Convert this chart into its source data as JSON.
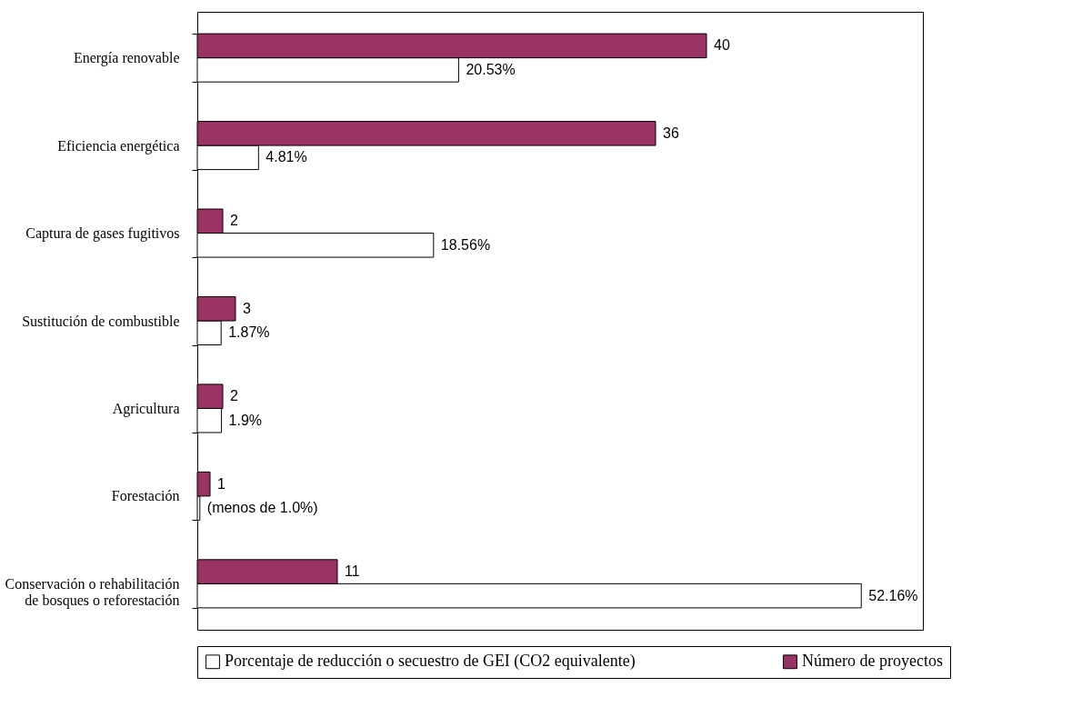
{
  "chart_data": {
    "type": "bar",
    "orientation": "horizontal",
    "categories": [
      "Energía renovable",
      "Eficiencia energética",
      "Captura de gases fugitivos",
      "Sustitución de combustible",
      "Agricultura",
      "Forestación",
      "Conservación o rehabilitación\nde bosques o reforestación"
    ],
    "series": [
      {
        "name": "Porcentaje de reducción o secuestro de GEI (CO2 equivalente)",
        "color": "#ffffff",
        "values": [
          20.53,
          4.81,
          18.56,
          1.87,
          1.9,
          0.2,
          52.16
        ],
        "value_labels": [
          "20.53%",
          "4.81%",
          "18.56%",
          "1.87%",
          "1.9%",
          "(menos de 1.0%)",
          "52.16%"
        ]
      },
      {
        "name": "Número de proyectos",
        "color": "#993366",
        "values": [
          40,
          36,
          2,
          3,
          2,
          1,
          11
        ],
        "value_labels": [
          "40",
          "36",
          "2",
          "3",
          "2",
          "1",
          "11"
        ]
      }
    ],
    "xlim": [
      0,
      57
    ],
    "tick_labels": "y",
    "grid": false,
    "legend": "bottom"
  }
}
